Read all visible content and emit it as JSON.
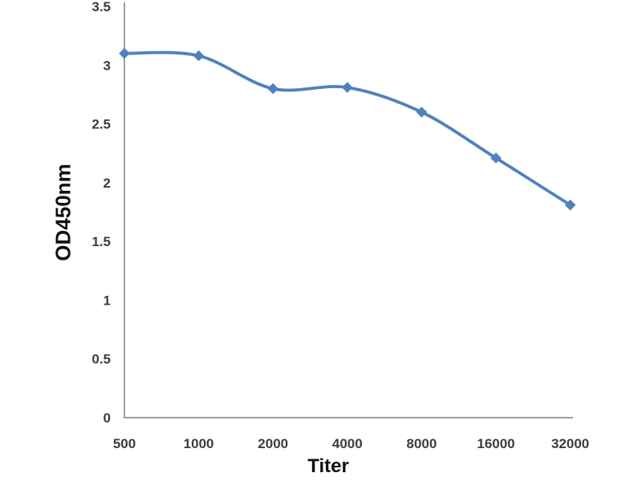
{
  "page": {
    "background_color": "#ffffff"
  },
  "chart_data": {
    "type": "line",
    "title": "",
    "xlabel": "Titer",
    "ylabel": "OD450nm",
    "categories": [
      "500",
      "1000",
      "2000",
      "4000",
      "8000",
      "16000",
      "32000"
    ],
    "series": [
      {
        "name": "OD450nm",
        "values": [
          3.1,
          3.08,
          2.8,
          2.81,
          2.6,
          2.21,
          1.81
        ]
      }
    ],
    "y_ticks": [
      "0",
      "0.5",
      "1",
      "1.5",
      "2",
      "2.5",
      "3",
      "3.5"
    ],
    "ylim": [
      0,
      3.5
    ],
    "grid": false,
    "legend_position": "none",
    "smooth": true,
    "marker": "diamond",
    "line_color": "#4f81bd",
    "marker_color": "#4f81bd",
    "axis_color": "#8e8e8e",
    "tick_color": "#3d3d3d"
  }
}
